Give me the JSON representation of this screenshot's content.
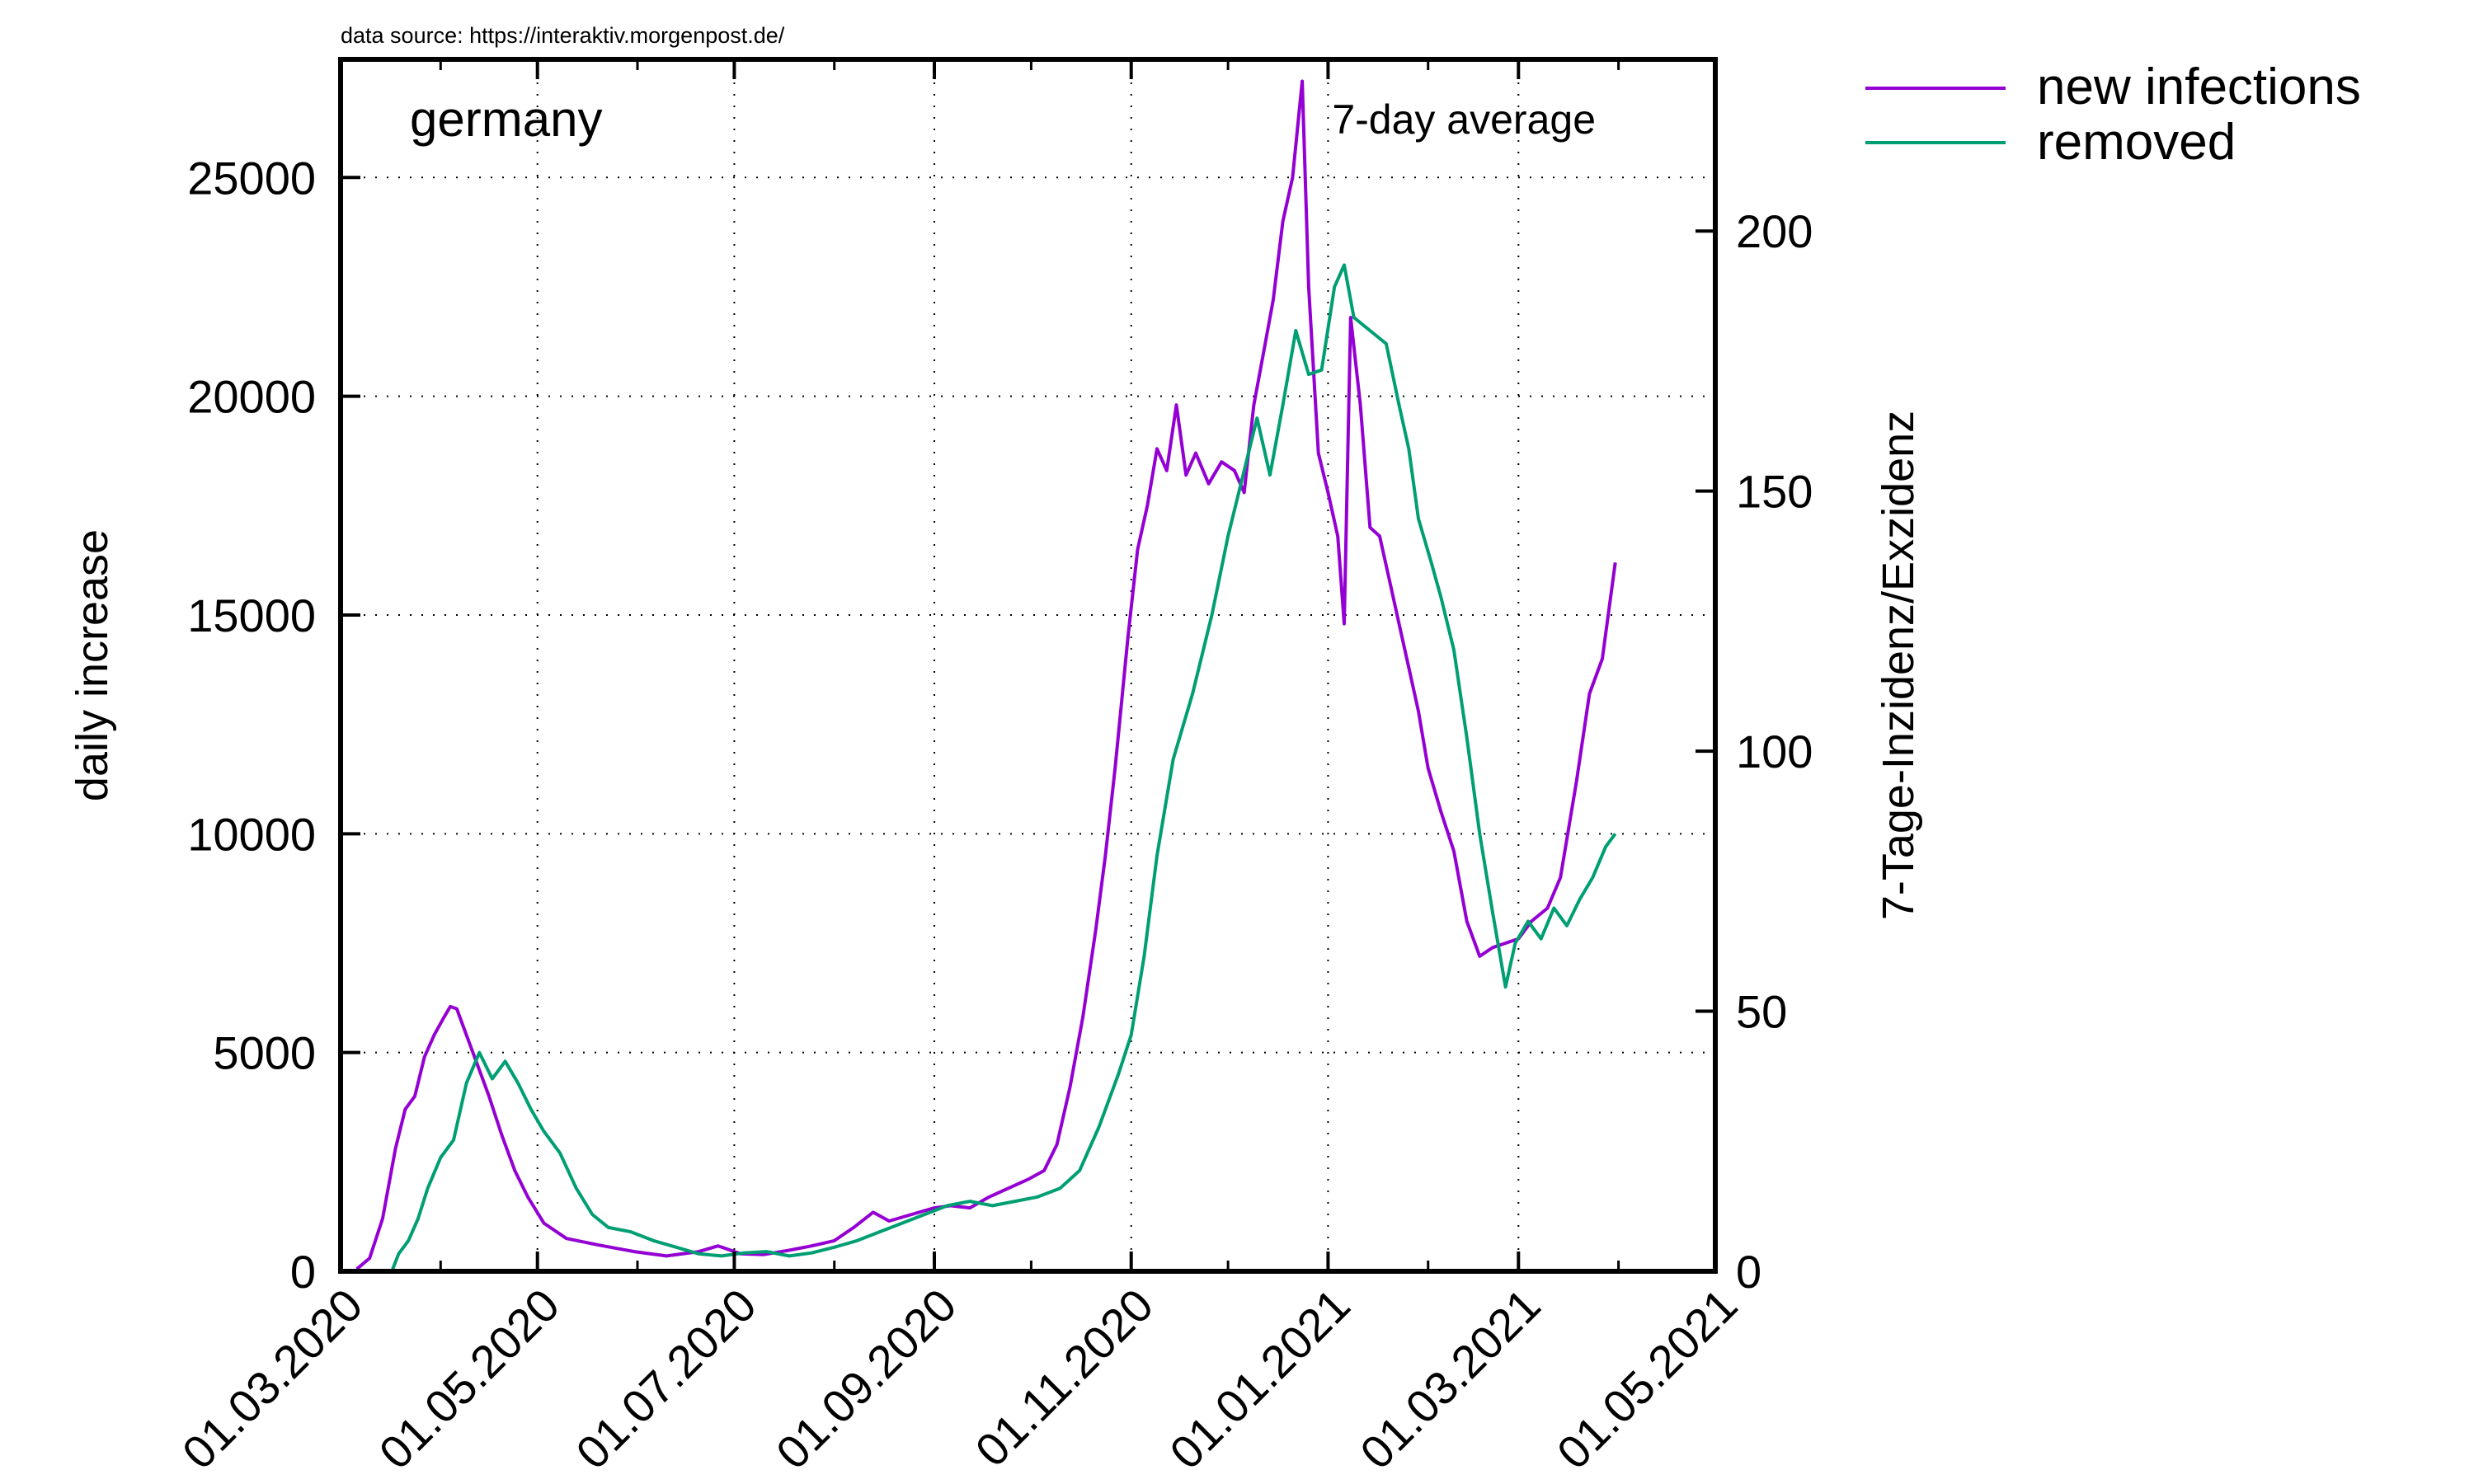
{
  "source_note": "data source: https://interaktiv.morgenpost.de/",
  "colors": {
    "new_infections": "#9400d3",
    "removed": "#009e73"
  },
  "chart_data": {
    "type": "line",
    "title": "germany",
    "subtitle": "7-day average",
    "ylabel": "daily increase",
    "y2label": "7-Tage-Inzidenz/Exzidenz",
    "xlim": [
      "01.03.2020",
      "01.05.2021"
    ],
    "ylim": [
      0,
      27700
    ],
    "y2lim": [
      0,
      233
    ],
    "x_ticks": [
      "01.03.2020",
      "01.05.2020",
      "01.07.2020",
      "01.09.2020",
      "01.11.2020",
      "01.01.2021",
      "01.03.2021",
      "01.05.2021"
    ],
    "y_ticks": [
      0,
      5000,
      10000,
      15000,
      20000,
      25000
    ],
    "y2_ticks": [
      0,
      50,
      100,
      150,
      200
    ],
    "grid": true,
    "legend_position": "top-right outside",
    "series": [
      {
        "name": "new infections",
        "axis": "left",
        "color": "#9400d3",
        "points": [
          [
            "2020-03-06",
            50
          ],
          [
            "2020-03-10",
            300
          ],
          [
            "2020-03-14",
            1200
          ],
          [
            "2020-03-18",
            2800
          ],
          [
            "2020-03-21",
            3700
          ],
          [
            "2020-03-24",
            4000
          ],
          [
            "2020-03-27",
            4900
          ],
          [
            "2020-03-30",
            5400
          ],
          [
            "2020-04-02",
            5800
          ],
          [
            "2020-04-04",
            6050
          ],
          [
            "2020-04-06",
            6000
          ],
          [
            "2020-04-09",
            5400
          ],
          [
            "2020-04-12",
            4800
          ],
          [
            "2020-04-16",
            4000
          ],
          [
            "2020-04-20",
            3100
          ],
          [
            "2020-04-24",
            2300
          ],
          [
            "2020-04-28",
            1700
          ],
          [
            "2020-05-03",
            1100
          ],
          [
            "2020-05-10",
            750
          ],
          [
            "2020-05-20",
            600
          ],
          [
            "2020-05-31",
            450
          ],
          [
            "2020-06-10",
            350
          ],
          [
            "2020-06-20",
            450
          ],
          [
            "2020-06-26",
            580
          ],
          [
            "2020-07-03",
            400
          ],
          [
            "2020-07-10",
            380
          ],
          [
            "2020-07-18",
            480
          ],
          [
            "2020-07-25",
            580
          ],
          [
            "2020-08-01",
            700
          ],
          [
            "2020-08-07",
            1000
          ],
          [
            "2020-08-13",
            1350
          ],
          [
            "2020-08-18",
            1150
          ],
          [
            "2020-08-25",
            1300
          ],
          [
            "2020-09-01",
            1450
          ],
          [
            "2020-09-06",
            1500
          ],
          [
            "2020-09-12",
            1450
          ],
          [
            "2020-09-18",
            1700
          ],
          [
            "2020-09-24",
            1900
          ],
          [
            "2020-09-30",
            2100
          ],
          [
            "2020-10-05",
            2300
          ],
          [
            "2020-10-09",
            2900
          ],
          [
            "2020-10-13",
            4200
          ],
          [
            "2020-10-17",
            5800
          ],
          [
            "2020-10-21",
            7800
          ],
          [
            "2020-10-24",
            9500
          ],
          [
            "2020-10-27",
            11500
          ],
          [
            "2020-10-31",
            14500
          ],
          [
            "2020-11-03",
            16500
          ],
          [
            "2020-11-06",
            17500
          ],
          [
            "2020-11-09",
            18800
          ],
          [
            "2020-11-12",
            18300
          ],
          [
            "2020-11-15",
            19800
          ],
          [
            "2020-11-18",
            18200
          ],
          [
            "2020-11-21",
            18700
          ],
          [
            "2020-11-25",
            18000
          ],
          [
            "2020-11-29",
            18500
          ],
          [
            "2020-12-03",
            18300
          ],
          [
            "2020-12-06",
            17800
          ],
          [
            "2020-12-09",
            19800
          ],
          [
            "2020-12-12",
            21000
          ],
          [
            "2020-12-15",
            22200
          ],
          [
            "2020-12-18",
            24000
          ],
          [
            "2020-12-21",
            25000
          ],
          [
            "2020-12-24",
            27200
          ],
          [
            "2020-12-26",
            22500
          ],
          [
            "2020-12-29",
            18700
          ],
          [
            "2021-01-01",
            17800
          ],
          [
            "2021-01-04",
            16800
          ],
          [
            "2021-01-06",
            14800
          ],
          [
            "2021-01-08",
            21800
          ],
          [
            "2021-01-11",
            19800
          ],
          [
            "2021-01-14",
            17000
          ],
          [
            "2021-01-17",
            16800
          ],
          [
            "2021-01-20",
            15800
          ],
          [
            "2021-01-23",
            14800
          ],
          [
            "2021-01-26",
            13800
          ],
          [
            "2021-01-29",
            12800
          ],
          [
            "2021-02-01",
            11500
          ],
          [
            "2021-02-05",
            10500
          ],
          [
            "2021-02-09",
            9600
          ],
          [
            "2021-02-13",
            8000
          ],
          [
            "2021-02-17",
            7200
          ],
          [
            "2021-02-21",
            7400
          ],
          [
            "2021-02-25",
            7500
          ],
          [
            "2021-03-01",
            7600
          ],
          [
            "2021-03-05",
            8000
          ],
          [
            "2021-03-10",
            8300
          ],
          [
            "2021-03-14",
            9000
          ],
          [
            "2021-03-19",
            11200
          ],
          [
            "2021-03-23",
            13200
          ],
          [
            "2021-03-27",
            14000
          ],
          [
            "2021-03-31",
            16200
          ]
        ]
      },
      {
        "name": "removed",
        "axis": "left",
        "color": "#009e73",
        "points": [
          [
            "2020-03-17",
            20
          ],
          [
            "2020-03-19",
            400
          ],
          [
            "2020-03-22",
            700
          ],
          [
            "2020-03-25",
            1200
          ],
          [
            "2020-03-28",
            1900
          ],
          [
            "2020-04-01",
            2600
          ],
          [
            "2020-04-05",
            3000
          ],
          [
            "2020-04-09",
            4300
          ],
          [
            "2020-04-13",
            5000
          ],
          [
            "2020-04-17",
            4400
          ],
          [
            "2020-04-21",
            4800
          ],
          [
            "2020-04-25",
            4300
          ],
          [
            "2020-04-29",
            3700
          ],
          [
            "2020-05-03",
            3200
          ],
          [
            "2020-05-08",
            2700
          ],
          [
            "2020-05-13",
            1900
          ],
          [
            "2020-05-18",
            1300
          ],
          [
            "2020-05-23",
            1000
          ],
          [
            "2020-05-30",
            900
          ],
          [
            "2020-06-06",
            700
          ],
          [
            "2020-06-13",
            550
          ],
          [
            "2020-06-20",
            400
          ],
          [
            "2020-06-27",
            350
          ],
          [
            "2020-07-04",
            420
          ],
          [
            "2020-07-11",
            450
          ],
          [
            "2020-07-18",
            350
          ],
          [
            "2020-07-25",
            420
          ],
          [
            "2020-08-01",
            550
          ],
          [
            "2020-08-08",
            700
          ],
          [
            "2020-08-15",
            900
          ],
          [
            "2020-08-22",
            1100
          ],
          [
            "2020-08-29",
            1300
          ],
          [
            "2020-09-05",
            1500
          ],
          [
            "2020-09-12",
            1600
          ],
          [
            "2020-09-19",
            1500
          ],
          [
            "2020-09-26",
            1600
          ],
          [
            "2020-10-03",
            1700
          ],
          [
            "2020-10-10",
            1900
          ],
          [
            "2020-10-16",
            2300
          ],
          [
            "2020-10-22",
            3300
          ],
          [
            "2020-10-28",
            4500
          ],
          [
            "2020-11-01",
            5400
          ],
          [
            "2020-11-05",
            7200
          ],
          [
            "2020-11-09",
            9500
          ],
          [
            "2020-11-14",
            11700
          ],
          [
            "2020-11-20",
            13200
          ],
          [
            "2020-11-26",
            15000
          ],
          [
            "2020-12-01",
            16800
          ],
          [
            "2020-12-06",
            18300
          ],
          [
            "2020-12-10",
            19500
          ],
          [
            "2020-12-14",
            18200
          ],
          [
            "2020-12-18",
            19800
          ],
          [
            "2020-12-22",
            21500
          ],
          [
            "2020-12-26",
            20500
          ],
          [
            "2020-12-30",
            20600
          ],
          [
            "2021-01-03",
            22500
          ],
          [
            "2021-01-06",
            23000
          ],
          [
            "2021-01-09",
            21800
          ],
          [
            "2021-01-14",
            21500
          ],
          [
            "2021-01-19",
            21200
          ],
          [
            "2021-01-23",
            19800
          ],
          [
            "2021-01-26",
            18800
          ],
          [
            "2021-01-29",
            17200
          ],
          [
            "2021-02-02",
            16200
          ],
          [
            "2021-02-05",
            15400
          ],
          [
            "2021-02-09",
            14200
          ],
          [
            "2021-02-13",
            12200
          ],
          [
            "2021-02-17",
            10000
          ],
          [
            "2021-02-21",
            8200
          ],
          [
            "2021-02-25",
            6500
          ],
          [
            "2021-02-28",
            7500
          ],
          [
            "2021-03-04",
            8000
          ],
          [
            "2021-03-08",
            7600
          ],
          [
            "2021-03-12",
            8300
          ],
          [
            "2021-03-16",
            7900
          ],
          [
            "2021-03-20",
            8500
          ],
          [
            "2021-03-24",
            9000
          ],
          [
            "2021-03-28",
            9700
          ],
          [
            "2021-03-31",
            10000
          ]
        ]
      }
    ]
  }
}
